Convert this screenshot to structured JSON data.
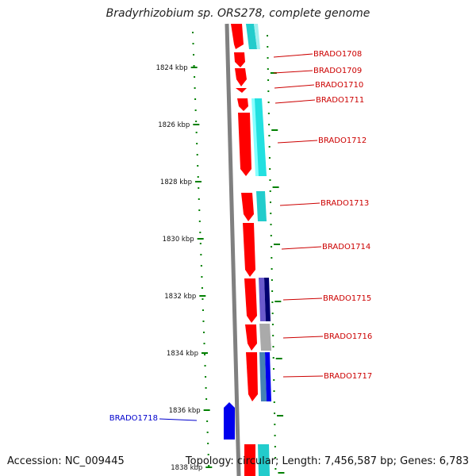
{
  "title": "Bradyrhizobium sp. ORS278, complete genome",
  "footer": {
    "accession": "Accession: NC_009445",
    "summary": "Topology: circular; Length: 7,456,587 bp; Genes: 6,783"
  },
  "colors": {
    "forward_gene": "#ff0000",
    "reverse_gene": "#0000ee",
    "highlight_label": "#0000cc",
    "gene_label": "#cc0000",
    "tick": "#008000",
    "backbone": "#808080",
    "cog_cyan": "#22cccc",
    "cog_navy": "#000070",
    "cog_violet": "#6a5acd",
    "cog_gray": "#aaaaaa",
    "cog_steel": "#4682b4"
  },
  "scale": {
    "unit": "kbp",
    "ticks": [
      "1824 kbp",
      "1826 kbp",
      "1828 kbp",
      "1830 kbp",
      "1832 kbp",
      "1834 kbp",
      "1836 kbp",
      "1838 kbp"
    ]
  },
  "genes": [
    {
      "label": "BRADO1708",
      "strand": "+"
    },
    {
      "label": "BRADO1709",
      "strand": "+"
    },
    {
      "label": "BRADO1710",
      "strand": "+"
    },
    {
      "label": "BRADO1711",
      "strand": "+"
    },
    {
      "label": "BRADO1712",
      "strand": "+"
    },
    {
      "label": "BRADO1713",
      "strand": "+"
    },
    {
      "label": "BRADO1714",
      "strand": "+"
    },
    {
      "label": "BRADO1715",
      "strand": "+"
    },
    {
      "label": "BRADO1716",
      "strand": "+"
    },
    {
      "label": "BRADO1717",
      "strand": "+"
    },
    {
      "label": "BRADO1718",
      "strand": "-",
      "highlighted": true
    }
  ]
}
